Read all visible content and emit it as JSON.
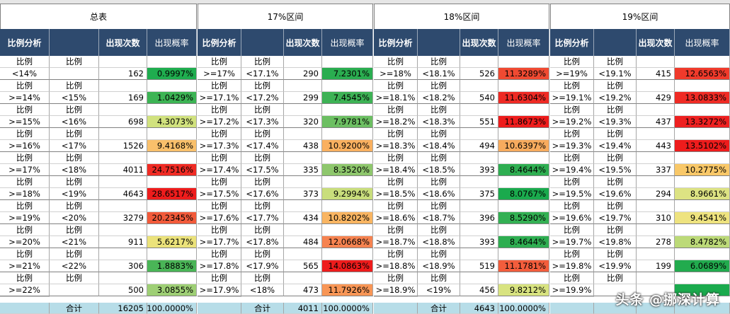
{
  "groups": [
    {
      "title": "总表",
      "hdr": [
        "比例分析",
        "",
        "出现次数",
        "出现概率"
      ],
      "rows": [
        {
          "a": "<14%",
          "b": "",
          "n": "162",
          "p": "0.9997%",
          "color": "#1fad4f"
        },
        {
          "a": ">=14%",
          "b": "<15%",
          "n": "169",
          "p": "1.0429%",
          "color": "#3cb454"
        },
        {
          "a": ">=15%",
          "b": "<16%",
          "n": "698",
          "p": "4.3073%",
          "color": "#d1e27e"
        },
        {
          "a": ">=16%",
          "b": "<17%",
          "n": "1526",
          "p": "9.4168%",
          "color": "#f9c06b"
        },
        {
          "a": ">=17%",
          "b": "<18%",
          "n": "4011",
          "p": "24.7516%",
          "color": "#f02b24"
        },
        {
          "a": ">=18%",
          "b": "<19%",
          "n": "4643",
          "p": "28.6517%",
          "color": "#ee1c1c"
        },
        {
          "a": ">=19%",
          "b": "<20%",
          "n": "3279",
          "p": "20.2345%",
          "color": "#f25a3a"
        },
        {
          "a": ">=20%",
          "b": "<21%",
          "n": "911",
          "p": "5.6217%",
          "color": "#ebe27a"
        },
        {
          "a": ">=21%",
          "b": "<22%",
          "n": "306",
          "p": "1.8883%",
          "color": "#4ab557"
        },
        {
          "a": ">=22%",
          "b": "",
          "n": "500",
          "p": "3.0855%",
          "color": "#9ecf75"
        }
      ],
      "total": {
        "label": "合计",
        "n": "16205",
        "p": "100.0000%"
      }
    },
    {
      "title": "17%区间",
      "hdr": [
        "比例分析",
        "",
        "出现次数",
        "出现概率"
      ],
      "rows": [
        {
          "a": ">=17%",
          "b": "<17.1%",
          "n": "290",
          "p": "7.2301%",
          "color": "#2aad50"
        },
        {
          "a": ">=17.1%",
          "b": "<17.2%",
          "n": "299",
          "p": "7.4545%",
          "color": "#3db255"
        },
        {
          "a": ">=17.2%",
          "b": "<17.3%",
          "n": "320",
          "p": "7.9781%",
          "color": "#6cbf62"
        },
        {
          "a": ">=17.3%",
          "b": "<17.4%",
          "n": "438",
          "p": "10.9200%",
          "color": "#f9b060"
        },
        {
          "a": ">=17.4%",
          "b": "<17.5%",
          "n": "335",
          "p": "8.3520%",
          "color": "#8ec76c"
        },
        {
          "a": ">=17.5%",
          "b": "<17.6%",
          "n": "373",
          "p": "9.2994%",
          "color": "#c9de7c"
        },
        {
          "a": ">=17.6%",
          "b": "<17.7%",
          "n": "434",
          "p": "10.8202%",
          "color": "#f9b562"
        },
        {
          "a": ">=17.7%",
          "b": "<17.8%",
          "n": "484",
          "p": "12.0668%",
          "color": "#f68350"
        },
        {
          "a": ">=17.8%",
          "b": "<17.9%",
          "n": "565",
          "p": "14.0863%",
          "color": "#ee1c1c"
        },
        {
          "a": ">=17.9%",
          "b": "<18%",
          "n": "473",
          "p": "11.7926%",
          "color": "#f89656"
        }
      ],
      "total": {
        "label": "合计",
        "n": "4011",
        "p": "100.0000%"
      }
    },
    {
      "title": "18%区间",
      "hdr": [
        "比例分析",
        "",
        "出现次数",
        "出现概率"
      ],
      "rows": [
        {
          "a": ">=18%",
          "b": "<18.1%",
          "n": "526",
          "p": "11.3289%",
          "color": "#f04a32"
        },
        {
          "a": ">=18.1%",
          "b": "<18.2%",
          "n": "540",
          "p": "11.6304%",
          "color": "#ee2a24"
        },
        {
          "a": ">=18.2%",
          "b": "<18.3%",
          "n": "551",
          "p": "11.8673%",
          "color": "#ee1c1c"
        },
        {
          "a": ">=18.3%",
          "b": "<18.4%",
          "n": "494",
          "p": "10.6397%",
          "color": "#f7ab5e"
        },
        {
          "a": ">=18.4%",
          "b": "<18.5%",
          "n": "393",
          "p": "8.4644%",
          "color": "#2eae51"
        },
        {
          "a": ">=18.5%",
          "b": "<18.6%",
          "n": "375",
          "p": "8.0767%",
          "color": "#1aaa4d"
        },
        {
          "a": ">=18.6%",
          "b": "<18.7%",
          "n": "396",
          "p": "8.5290%",
          "color": "#33b053"
        },
        {
          "a": ">=18.7%",
          "b": "<18.8%",
          "n": "393",
          "p": "8.4644%",
          "color": "#2eae51"
        },
        {
          "a": ">=18.8%",
          "b": "<18.9%",
          "n": "519",
          "p": "11.1781%",
          "color": "#f25d3c"
        },
        {
          "a": ">=18.9%",
          "b": "<19%",
          "n": "456",
          "p": "9.8212%",
          "color": "#d8e380"
        }
      ],
      "total": {
        "label": "合计",
        "n": "4643",
        "p": "100.0000%"
      }
    },
    {
      "title": "19%区间",
      "hdr": [
        "比例分析",
        "",
        "出现次数",
        "出现概率"
      ],
      "rows": [
        {
          "a": ">=19%",
          "b": "<19.1%",
          "n": "415",
          "p": "12.6563%",
          "color": "#f03a2b"
        },
        {
          "a": ">=19.1%",
          "b": "<19.2%",
          "n": "429",
          "p": "13.0833%",
          "color": "#ef2b24"
        },
        {
          "a": ">=19.2%",
          "b": "<19.3%",
          "n": "437",
          "p": "13.3272%",
          "color": "#ee2020"
        },
        {
          "a": ">=19.3%",
          "b": "<19.4%",
          "n": "443",
          "p": "13.5102%",
          "color": "#ee1c1c"
        },
        {
          "a": ">=19.4%",
          "b": "<19.5%",
          "n": "337",
          "p": "10.2775%",
          "color": "#f9c868"
        },
        {
          "a": ">=19.5%",
          "b": "<19.6%",
          "n": "294",
          "p": "8.9661%",
          "color": "#dde383"
        },
        {
          "a": ">=19.6%",
          "b": "<19.7%",
          "n": "310",
          "p": "9.4541%",
          "color": "#eee37f"
        },
        {
          "a": ">=19.7%",
          "b": "<19.8%",
          "n": "278",
          "p": "8.4782%",
          "color": "#bcda78"
        },
        {
          "a": ">=19.8%",
          "b": "<19.9%",
          "n": "199",
          "p": "6.0689%",
          "color": "#22ab4e"
        },
        {
          "a": ">=19.9%",
          "b": "",
          "n": "",
          "p": "",
          "color": "#1aaa4d"
        }
      ],
      "total": {
        "label": "",
        "n": "",
        "p": ""
      }
    }
  ],
  "sub_label": "比例",
  "watermark": "头条 @挪深计算"
}
